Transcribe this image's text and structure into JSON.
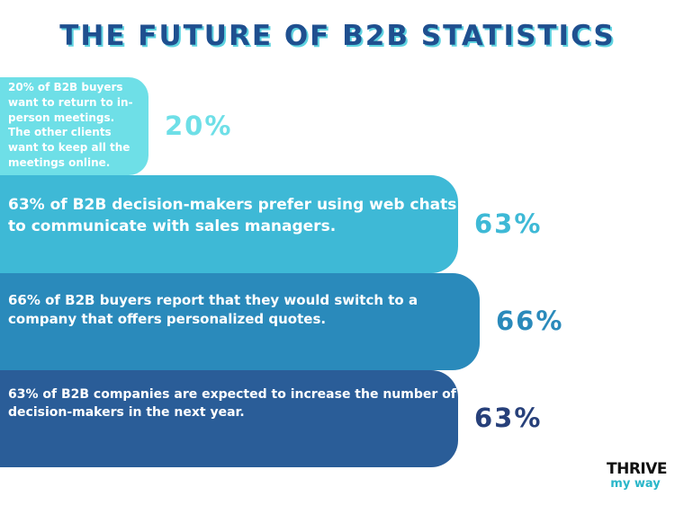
{
  "title": "THE FUTURE OF B2B STATISTICS",
  "chart_data": {
    "type": "bar",
    "orientation": "horizontal",
    "title": "THE FUTURE OF B2B STATISTICS",
    "categories": [
      "20% of B2B buyers want to return to in-person meetings. The other clients want to keep all the meetings online.",
      "63% of B2B decision-makers prefer using web chats to communicate with sales managers.",
      "66% of B2B buyers report that they would switch to a company that offers personalized quotes.",
      "63% of B2B companies are expected to increase the number of decision-makers in the next year."
    ],
    "values": [
      20,
      63,
      66,
      63
    ],
    "value_labels": [
      "20%",
      "63%",
      "66%",
      "63%"
    ],
    "unit": "%",
    "colors": [
      "#6edfe7",
      "#3eb9d6",
      "#2a8abb",
      "#2a5d98"
    ],
    "label_colors": [
      "#6edfe7",
      "#3eb9d6",
      "#2a8abb",
      "#27407a"
    ]
  },
  "logo": {
    "line1": "THRIVE",
    "line2": "my way"
  }
}
